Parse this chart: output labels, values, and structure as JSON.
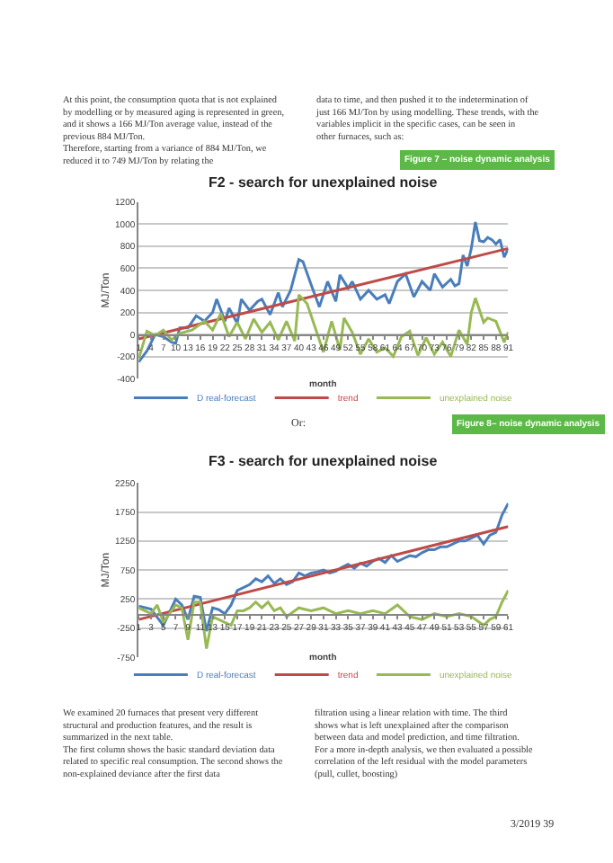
{
  "chart_data": [
    {
      "type": "line",
      "title": "F2 - search for unexplained noise",
      "xlabel": "month",
      "ylabel": "MJ/Ton",
      "xlim": [
        1,
        91
      ],
      "xticks": [
        1,
        4,
        7,
        10,
        13,
        16,
        19,
        22,
        25,
        28,
        31,
        34,
        37,
        40,
        43,
        46,
        49,
        52,
        55,
        58,
        61,
        64,
        67,
        70,
        73,
        76,
        79,
        82,
        85,
        88,
        91
      ],
      "ylim": [
        -400,
        1200
      ],
      "yticks": [
        -400,
        -200,
        0,
        200,
        400,
        600,
        800,
        1000,
        1200
      ],
      "grid": "y",
      "legend": "bottom",
      "marker": "none",
      "line_style": "solid",
      "annotations": [
        "At this point, the consumption quota that is not explained by modelling or by measured aging is represented in green, and it shows a 166 MJ/Ton average value, instead of the previous 884 MJ/Ton.\nTherefore, starting from a variance of 884 MJ/Ton, we reduced it to 749 MJ/Ton by relating the",
        "data to time, and then pushed it to the indetermination of just 166 MJ/Ton by using modelling. These trends, with the variables implicit in the specific cases, can be seen in other furnaces, such as:",
        "Figure 7 – noise dynamic analysis"
      ],
      "series": [
        {
          "name": "D real-forecast",
          "color": "#4a7ebb",
          "x": [
            1,
            3,
            5,
            7,
            9,
            10,
            11,
            13,
            15,
            17,
            19,
            20,
            22,
            23,
            25,
            26,
            28,
            30,
            31,
            33,
            35,
            36,
            38,
            40,
            41,
            43,
            45,
            47,
            49,
            50,
            52,
            53,
            55,
            57,
            59,
            61,
            62,
            64,
            66,
            68,
            70,
            72,
            73,
            75,
            77,
            78,
            79,
            80,
            81,
            82,
            83,
            84,
            85,
            86,
            87,
            88,
            89,
            90,
            91
          ],
          "values": [
            -250,
            -150,
            0,
            -20,
            -70,
            -80,
            60,
            60,
            170,
            120,
            200,
            320,
            120,
            240,
            100,
            320,
            220,
            300,
            320,
            180,
            380,
            250,
            400,
            680,
            660,
            450,
            250,
            480,
            300,
            540,
            420,
            480,
            320,
            400,
            320,
            360,
            280,
            480,
            550,
            340,
            480,
            400,
            550,
            430,
            500,
            440,
            460,
            720,
            620,
            780,
            1020,
            850,
            840,
            880,
            860,
            820,
            860,
            700,
            780
          ]
        },
        {
          "name": "trend",
          "color": "#be4b48",
          "x": [
            1,
            91
          ],
          "values": [
            -40,
            780
          ]
        },
        {
          "name": "unexplained noise",
          "color": "#98b954",
          "x": [
            1,
            3,
            5,
            7,
            9,
            11,
            14,
            17,
            19,
            21,
            23,
            25,
            27,
            29,
            31,
            33,
            35,
            37,
            39,
            40,
            42,
            44,
            46,
            48,
            50,
            51,
            53,
            55,
            57,
            59,
            61,
            63,
            65,
            67,
            69,
            71,
            73,
            75,
            77,
            79,
            81,
            82,
            83,
            85,
            86,
            88,
            90,
            91
          ],
          "values": [
            -220,
            30,
            -10,
            40,
            -50,
            10,
            40,
            120,
            40,
            190,
            -20,
            110,
            -40,
            140,
            20,
            110,
            -50,
            120,
            -60,
            360,
            280,
            60,
            -160,
            120,
            -140,
            150,
            20,
            -180,
            -40,
            -160,
            -120,
            -200,
            -20,
            30,
            -190,
            -30,
            -180,
            -70,
            -200,
            40,
            -90,
            200,
            330,
            110,
            150,
            120,
            -70,
            20
          ]
        }
      ]
    },
    {
      "type": "line",
      "title": "F3 - search for unexplained noise",
      "xlabel": "month",
      "ylabel": "MJ/Ton",
      "xlim": [
        1,
        61
      ],
      "xticks": [
        1,
        3,
        5,
        7,
        9,
        11,
        13,
        15,
        17,
        19,
        21,
        23,
        25,
        27,
        29,
        31,
        33,
        35,
        37,
        39,
        41,
        43,
        45,
        47,
        49,
        51,
        53,
        55,
        57,
        59,
        61
      ],
      "ylim": [
        -750,
        2250
      ],
      "yticks": [
        -750,
        -250,
        250,
        750,
        1250,
        1750,
        2250
      ],
      "grid": "y",
      "legend": "bottom",
      "marker": "none",
      "line_style": "solid",
      "annotations": [
        "Or:",
        "Figure 8– noise dynamic analysis",
        "We examined 20 furnaces that present very different structural and production features, and the result is summarized in the next table.\nThe first column shows the basic standard deviation data related to specific real consumption. The second shows the non-explained deviance after the first data",
        "filtration using a linear relation with time. The third shows what is left unexplained after the comparison between data and model prediction, and time filtration.\nFor a more in-depth analysis, we then evaluated a possible correlation of the left residual with the model parameters (pull, cullet, boosting)",
        "3/2019 39"
      ],
      "series": [
        {
          "name": "D real-forecast",
          "color": "#4a7ebb",
          "x": [
            1,
            3,
            5,
            7,
            8,
            9,
            10,
            11,
            12,
            13,
            14,
            15,
            16,
            17,
            18,
            19,
            20,
            21,
            22,
            23,
            24,
            25,
            26,
            27,
            28,
            29,
            30,
            31,
            32,
            33,
            34,
            35,
            36,
            37,
            38,
            39,
            40,
            41,
            42,
            43,
            44,
            45,
            46,
            47,
            48,
            49,
            50,
            51,
            52,
            53,
            54,
            55,
            56,
            57,
            58,
            59,
            60,
            61
          ],
          "values": [
            130,
            80,
            -200,
            250,
            150,
            -100,
            300,
            280,
            -300,
            100,
            70,
            0,
            150,
            400,
            450,
            500,
            600,
            550,
            650,
            520,
            600,
            500,
            550,
            700,
            650,
            700,
            720,
            750,
            700,
            730,
            800,
            850,
            780,
            870,
            820,
            900,
            950,
            880,
            1000,
            900,
            950,
            1000,
            980,
            1050,
            1100,
            1100,
            1150,
            1150,
            1200,
            1250,
            1250,
            1300,
            1350,
            1200,
            1350,
            1400,
            1700,
            1900
          ]
        },
        {
          "name": "trend",
          "color": "#be4b48",
          "x": [
            1,
            61
          ],
          "values": [
            -100,
            1500
          ]
        },
        {
          "name": "unexplained noise",
          "color": "#98b954",
          "x": [
            1,
            3,
            4,
            5,
            7,
            8,
            9,
            10,
            11,
            12,
            13,
            14,
            15,
            16,
            17,
            18,
            19,
            20,
            21,
            22,
            23,
            24,
            25,
            27,
            29,
            31,
            33,
            35,
            37,
            39,
            41,
            43,
            45,
            47,
            49,
            51,
            53,
            55,
            57,
            58,
            59,
            60,
            61
          ],
          "values": [
            100,
            0,
            150,
            -150,
            150,
            100,
            -450,
            200,
            200,
            -600,
            -50,
            -100,
            -150,
            -200,
            50,
            50,
            100,
            200,
            100,
            200,
            50,
            100,
            -50,
            100,
            50,
            100,
            0,
            50,
            0,
            50,
            0,
            150,
            -50,
            -100,
            0,
            -50,
            0,
            -50,
            -200,
            -100,
            -50,
            200,
            400
          ]
        }
      ]
    }
  ]
}
